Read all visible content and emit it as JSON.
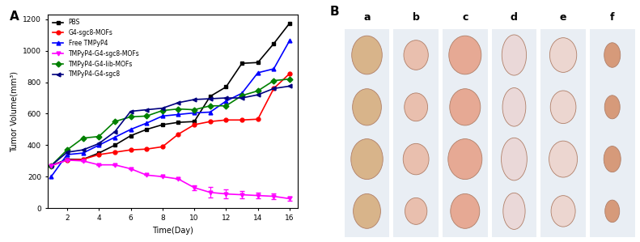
{
  "chart_data": {
    "type": "line",
    "panel_label": "A",
    "x_label": "Time(Day)",
    "y_label": "Tumor Volume(mm³)",
    "x": [
      1,
      2,
      3,
      4,
      5,
      6,
      7,
      8,
      9,
      10,
      11,
      12,
      13,
      14,
      15,
      16
    ],
    "xlim": [
      0.8,
      16.5
    ],
    "xticks": [
      2,
      4,
      6,
      8,
      10,
      12,
      14,
      16
    ],
    "ylim": [
      0,
      1230
    ],
    "yticks": [
      0,
      200,
      400,
      600,
      800,
      1000,
      1200
    ],
    "legend": "upper left",
    "series": [
      {
        "name": "PBS",
        "color": "#000000",
        "marker": "square",
        "values": [
          270,
          310,
          310,
          350,
          400,
          460,
          500,
          530,
          545,
          550,
          710,
          770,
          920,
          925,
          1045,
          1175
        ]
      },
      {
        "name": "G4-sgc8-MOFs",
        "color": "#ff0000",
        "marker": "circle",
        "values": [
          270,
          305,
          310,
          340,
          355,
          370,
          375,
          390,
          470,
          530,
          550,
          560,
          560,
          565,
          760,
          855
        ]
      },
      {
        "name": "Free TMPyP4",
        "color": "#0000ff",
        "marker": "triangle_up",
        "values": [
          200,
          340,
          350,
          400,
          450,
          500,
          540,
          585,
          595,
          605,
          610,
          680,
          730,
          860,
          885,
          1065
        ]
      },
      {
        "name": "TMPyP4-G4-sgc8-MOFs",
        "color": "#ff00ff",
        "marker": "triangle_down",
        "values": [
          270,
          305,
          300,
          275,
          275,
          250,
          210,
          200,
          185,
          130,
          100,
          90,
          85,
          80,
          75,
          60
        ],
        "errors": [
          0,
          0,
          0,
          0,
          0,
          0,
          0,
          0,
          0,
          15,
          35,
          30,
          25,
          20,
          20,
          15
        ]
      },
      {
        "name": "TMPyP4-G4-lib-MOFs",
        "color": "#008000",
        "marker": "diamond",
        "values": [
          270,
          370,
          445,
          455,
          550,
          580,
          585,
          620,
          630,
          625,
          650,
          650,
          715,
          745,
          810,
          820
        ]
      },
      {
        "name": "TMPyP4-G4-sgc8",
        "color": "#00007f",
        "marker": "triangle_left",
        "values": [
          270,
          355,
          370,
          410,
          485,
          615,
          625,
          635,
          670,
          690,
          695,
          700,
          700,
          720,
          760,
          775
        ]
      }
    ]
  },
  "photo_panel": {
    "panel_label": "B",
    "columns": [
      "a",
      "b",
      "c",
      "d",
      "e",
      "f"
    ]
  }
}
